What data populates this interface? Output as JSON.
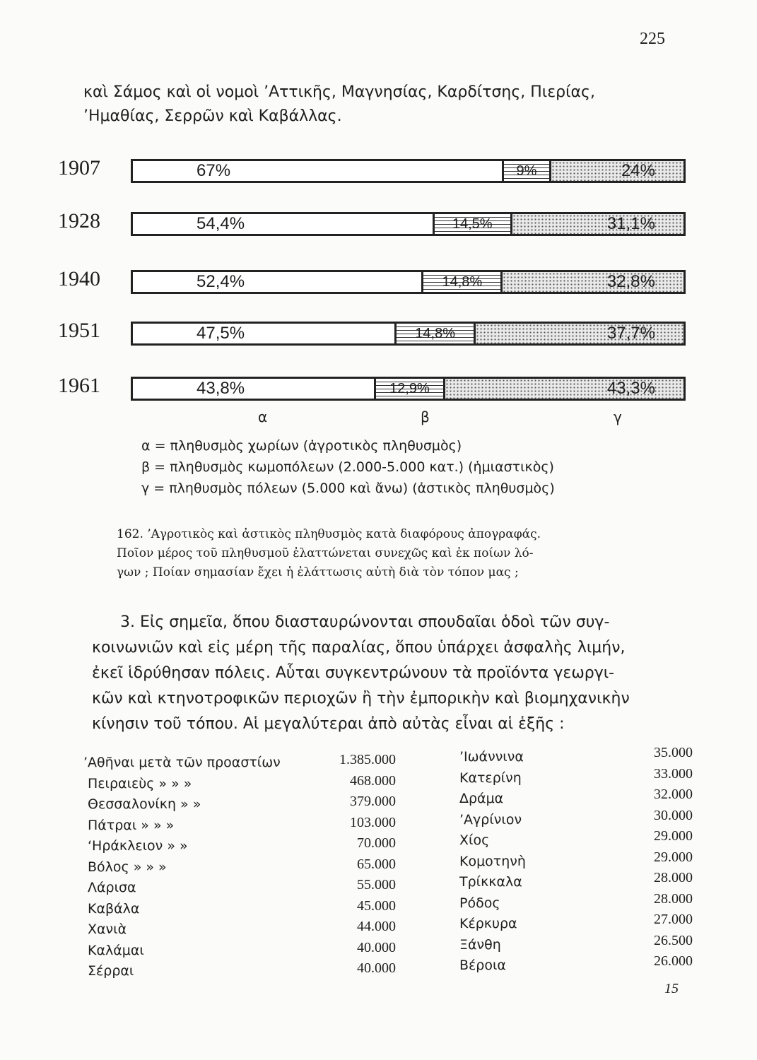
{
  "page_number": "225",
  "intro_lines": [
    "καὶ Σάμος καὶ οἱ νομοὶ ’Αττικῆς, Μαγνησίας, Καρδίτσης, Πιερίας,",
    "’Ημαθίας, Σερρῶν καὶ Καβάλλας."
  ],
  "chart_data": {
    "type": "bar",
    "orientation": "horizontal-stacked-100",
    "categories": [
      "1907",
      "1928",
      "1940",
      "1951",
      "1961"
    ],
    "series": [
      {
        "name": "α",
        "values": [
          67,
          54.4,
          52.4,
          47.5,
          43.8
        ],
        "labels": [
          "67%",
          "54,4%",
          "52,4%",
          "47,5%",
          "43,8%"
        ],
        "pattern": "blank"
      },
      {
        "name": "β",
        "values": [
          9,
          14.5,
          14.8,
          14.8,
          12.9
        ],
        "labels": [
          "9%",
          "14,5%",
          "14,8%",
          "14,8%",
          "12,9%"
        ],
        "pattern": "horizontal-lines"
      },
      {
        "name": "γ",
        "values": [
          24,
          31.1,
          32.8,
          37.7,
          43.3
        ],
        "labels": [
          "24%",
          "31,1%",
          "32,8%",
          "37,7%",
          "43,3%"
        ],
        "pattern": "dots"
      }
    ],
    "axis_labels": [
      "α",
      "β",
      "γ"
    ],
    "legend": [
      "α = πληθυσμὸς χωρίων (ἀγροτικὸς πληθυσμὸς)",
      "β = πληθυσμὸς κωμοπόλεων (2.000-5.000 κατ.) (ἡμιαστικὸς)",
      "γ = πληθυσμὸς πόλεων (5.000 καὶ ἄνω) (ἀστικὸς πληθυσμὸς)"
    ]
  },
  "caption_lines": [
    "162. ’Αγροτικὸς καὶ ἀστικὸς πληθυσμὸς κατὰ διαφόρους ἀπογραφάς.",
    "Ποῖον μέρος τοῦ πληθυσμοῦ ἐλαττώνεται συνεχῶς καὶ ἐκ ποίων λό-",
    "γων ; Ποίαν σημασίαν ἔχει ἡ ἐλάττωσις αὐτὴ διὰ τὸν τόπον μας ;"
  ],
  "body_lines": [
    "3. Εἰς σημεῖα, ὅπου διασταυρώνονται σπουδαῖαι ὁδοὶ τῶν συγ-",
    "κοινωνιῶν καὶ εἰς μέρη τῆς παραλίας, ὅπου ὑπάρχει ἀσφαλὴς λιμήν,",
    "ἐκεῖ ἱδρύθησαν πόλεις. Αὗται συγκεντρώνουν τὰ προϊόντα γεωργι-",
    "κῶν καὶ κτηνοτροφικῶν περιοχῶν ἢ τὴν ἐμπορικὴν καὶ βιομηχανικὴν",
    "κίνησιν τοῦ τόπου. Αἱ μεγαλύτεραι ἀπὸ αὐτὰς εἶναι αἱ ἑξῆς :"
  ],
  "cities_left": [
    {
      "name": "’Αθῆναι μετὰ τῶν προαστίων",
      "value": "1.385.000"
    },
    {
      "name": "Πειραιεὺς »   »      »",
      "value": "468.000"
    },
    {
      "name": "Θεσσαλονίκη »      »",
      "value": "379.000"
    },
    {
      "name": "Πάτραι  »   »      »",
      "value": "103.000"
    },
    {
      "name": "‘Ηράκλειον   »      »",
      "value": "70.000"
    },
    {
      "name": "Βόλος   »   »      »",
      "value": "65.000"
    },
    {
      "name": "Λάρισα",
      "value": "55.000"
    },
    {
      "name": "Καβάλα",
      "value": "45.000"
    },
    {
      "name": "Χανιὰ",
      "value": "44.000"
    },
    {
      "name": "Καλάμαι",
      "value": "40.000"
    },
    {
      "name": "Σέρραι",
      "value": "40.000"
    }
  ],
  "cities_right": [
    {
      "name": "’Ιωάννινα",
      "value": "35.000"
    },
    {
      "name": "Κατερίνη",
      "value": "33.000"
    },
    {
      "name": "Δράμα",
      "value": "32.000"
    },
    {
      "name": "’Αγρίνιον",
      "value": "30.000"
    },
    {
      "name": "Χίος",
      "value": "29.000"
    },
    {
      "name": "Κομοτηνὴ",
      "value": "29.000"
    },
    {
      "name": "Τρίκκαλα",
      "value": "28.000"
    },
    {
      "name": "Ρόδος",
      "value": "28.000"
    },
    {
      "name": "Κέρκυρα",
      "value": "27.000"
    },
    {
      "name": "Ξάνθη",
      "value": "26.500"
    },
    {
      "name": "Βέροια",
      "value": "26.000"
    }
  ],
  "signature_mark": "15"
}
